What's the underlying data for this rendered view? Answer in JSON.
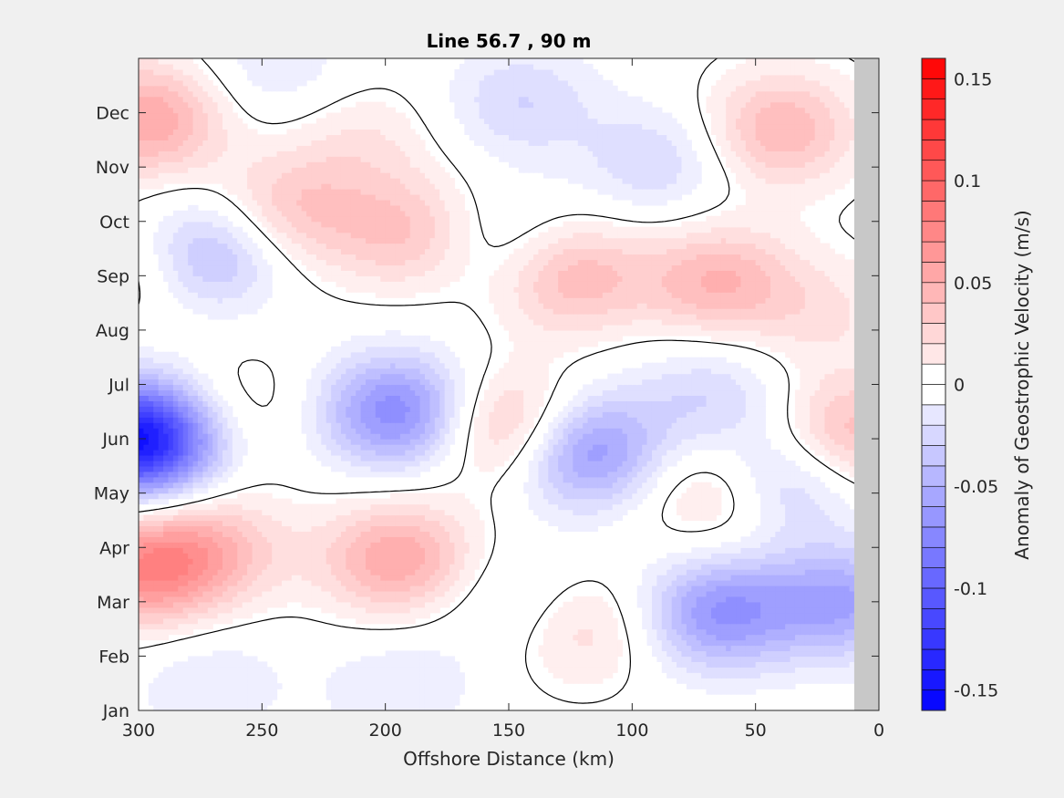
{
  "chart_data": {
    "type": "heatmap",
    "title": "Line 56.7 , 90 m",
    "xlabel": "Offshore Distance (km)",
    "ylabel": "",
    "colorbar_label": "Anomaly of Geostrophic Velocity (m/s)",
    "xlim": [
      300,
      0
    ],
    "x_reversed": true,
    "xticks": [
      300,
      250,
      200,
      150,
      100,
      50,
      0
    ],
    "yticks": [
      "Jan",
      "Feb",
      "Mar",
      "Apr",
      "May",
      "Jun",
      "Jul",
      "Aug",
      "Sep",
      "Oct",
      "Nov",
      "Dec"
    ],
    "ylim_months": [
      1,
      13
    ],
    "clim": [
      -0.16,
      0.16
    ],
    "colorbar_ticks": [
      0.15,
      0.1,
      0.05,
      0,
      -0.05,
      -0.1,
      -0.15
    ],
    "colorbar_tick_labels": [
      "0.15",
      "0.1",
      "0.05",
      "0",
      "-0.05",
      "-0.1",
      "-0.15"
    ],
    "contour_interval": 0.01,
    "zero_contour_color": "#000000",
    "land_mask_color": "#c8c8c8",
    "land_mask_x_range_km": [
      0,
      10
    ],
    "colormap": {
      "negative_max": "#0000ff",
      "zero": "#ffffff",
      "positive_max": "#ff0000"
    },
    "anomaly_features": [
      {
        "x_km": 300,
        "month": 6.0,
        "value": -0.16
      },
      {
        "x_km": 296,
        "month": 11.9,
        "value": 0.06
      },
      {
        "x_km": 298,
        "month": 3.6,
        "value": 0.07
      },
      {
        "x_km": 297,
        "month": 9.2,
        "value": 0.03
      },
      {
        "x_km": 273,
        "month": 9.4,
        "value": -0.06
      },
      {
        "x_km": 270,
        "month": 4.0,
        "value": 0.04
      },
      {
        "x_km": 262,
        "month": 6.6,
        "value": 0.02
      },
      {
        "x_km": 272,
        "month": 1.5,
        "value": -0.02
      },
      {
        "x_km": 240,
        "month": 10.2,
        "value": 0.04
      },
      {
        "x_km": 245,
        "month": 12.8,
        "value": -0.02
      },
      {
        "x_km": 195,
        "month": 6.5,
        "value": -0.08
      },
      {
        "x_km": 195,
        "month": 3.8,
        "value": 0.06
      },
      {
        "x_km": 192,
        "month": 9.8,
        "value": 0.04
      },
      {
        "x_km": 195,
        "month": 1.4,
        "value": -0.02
      },
      {
        "x_km": 210,
        "month": 11.5,
        "value": 0.02
      },
      {
        "x_km": 148,
        "month": 6.2,
        "value": 0.06
      },
      {
        "x_km": 145,
        "month": 12.2,
        "value": -0.03
      },
      {
        "x_km": 150,
        "month": 9.6,
        "value": -0.02
      },
      {
        "x_km": 148,
        "month": 3.0,
        "value": -0.02
      },
      {
        "x_km": 125,
        "month": 9.0,
        "value": 0.05
      },
      {
        "x_km": 120,
        "month": 5.8,
        "value": -0.08
      },
      {
        "x_km": 120,
        "month": 2.5,
        "value": 0.03
      },
      {
        "x_km": 90,
        "month": 11.1,
        "value": -0.03
      },
      {
        "x_km": 65,
        "month": 8.9,
        "value": 0.05
      },
      {
        "x_km": 65,
        "month": 2.8,
        "value": -0.07
      },
      {
        "x_km": 63,
        "month": 5.0,
        "value": 0.04
      },
      {
        "x_km": 68,
        "month": 6.8,
        "value": -0.03
      },
      {
        "x_km": 40,
        "month": 11.7,
        "value": 0.05
      },
      {
        "x_km": 40,
        "month": 5.2,
        "value": -0.05
      },
      {
        "x_km": 15,
        "month": 3.0,
        "value": -0.06
      },
      {
        "x_km": 12,
        "month": 6.1,
        "value": 0.05
      },
      {
        "x_km": 22,
        "month": 8.3,
        "value": 0.02
      }
    ]
  }
}
